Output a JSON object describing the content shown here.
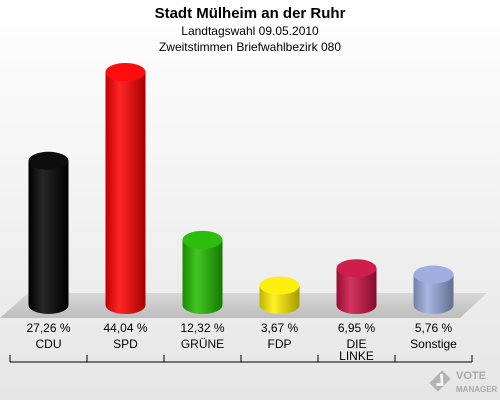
{
  "title": "Stadt Mülheim an der Ruhr",
  "subtitle1": "Landtagswahl 09.05.2010",
  "subtitle2": "Zweitstimmen Briefwahlbezirk 080",
  "logo": {
    "line1": "VOTE",
    "line2": "MANAGER"
  },
  "chart_data": {
    "type": "bar",
    "title": "Stadt Mülheim an der Ruhr",
    "categories": [
      "CDU",
      "SPD",
      "GRÜNE",
      "FDP",
      "DIE LINKE",
      "Sonstige"
    ],
    "values": [
      27.26,
      44.04,
      12.32,
      3.67,
      6.95,
      5.76
    ],
    "value_labels": [
      "27,26 %",
      "44,04 %",
      "12,32 %",
      "3,67 %",
      "6,95 %",
      "5,76 %"
    ],
    "colors": [
      "#000000",
      "#ff0000",
      "#22bb00",
      "#ffee00",
      "#cc1144",
      "#99aadd"
    ],
    "ylim": [
      0,
      44.04
    ],
    "grid": false,
    "legend": "none"
  }
}
